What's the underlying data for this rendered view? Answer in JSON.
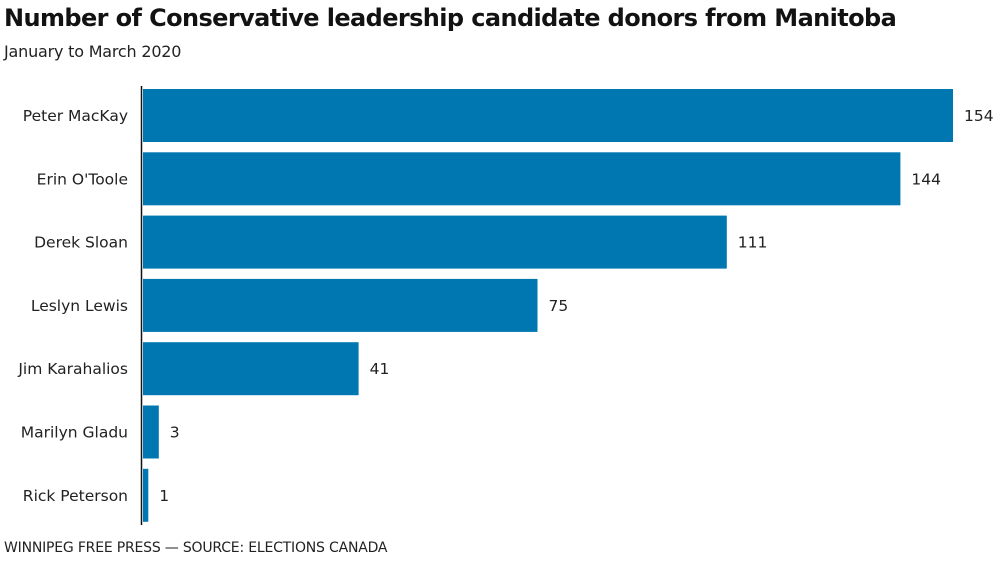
{
  "header": {
    "title": "Number of Conservative leadership candidate donors from Manitoba",
    "subtitle": "January to March 2020"
  },
  "footer": {
    "source": "WINNIPEG FREE PRESS — SOURCE: ELECTIONS CANADA"
  },
  "colors": {
    "bar": "#0077b0",
    "axis": "#111111"
  },
  "chart_data": {
    "type": "bar",
    "orientation": "horizontal",
    "title": "Number of Conservative leadership candidate donors from Manitoba",
    "subtitle": "January to March 2020",
    "xlabel": "",
    "ylabel": "",
    "categories": [
      "Peter MacKay",
      "Erin O'Toole",
      "Derek Sloan",
      "Leslyn Lewis",
      "Jim Karahalios",
      "Marilyn Gladu",
      "Rick Peterson"
    ],
    "values": [
      154,
      144,
      111,
      75,
      41,
      3,
      1
    ],
    "data_labels": [
      "154",
      "144",
      "111",
      "75",
      "41",
      "3",
      "1"
    ],
    "xlim": [
      0,
      154
    ],
    "grid": false,
    "legend": "none",
    "source": "WINNIPEG FREE PRESS — SOURCE: ELECTIONS CANADA"
  }
}
